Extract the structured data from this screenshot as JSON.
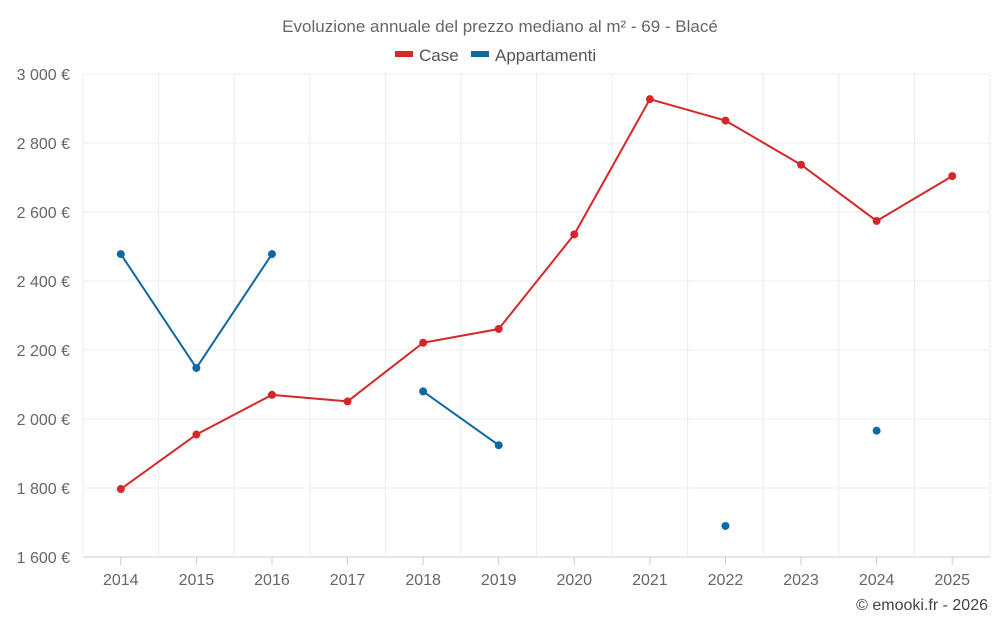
{
  "chart_data": {
    "type": "line",
    "title": "Evoluzione annuale del prezzo mediano al m² - 69 - Blacé",
    "categories": [
      "2014",
      "2015",
      "2016",
      "2017",
      "2018",
      "2019",
      "2020",
      "2021",
      "2022",
      "2023",
      "2024",
      "2025"
    ],
    "ylim": [
      1600,
      3000
    ],
    "yticks": [
      1600,
      1800,
      2000,
      2200,
      2400,
      2600,
      2800,
      3000
    ],
    "ytick_labels": [
      "1 600 €",
      "1 800 €",
      "2 000 €",
      "2 200 €",
      "2 400 €",
      "2 600 €",
      "2 800 €",
      "3 000 €"
    ],
    "legend_position": "top-center",
    "grid": true,
    "series": [
      {
        "name": "Case",
        "color": "#d62728",
        "values": [
          1797,
          1955,
          2070,
          2051,
          2221,
          2261,
          2535,
          2927,
          2865,
          2737,
          2574,
          2704
        ]
      },
      {
        "name": "Appartamenti",
        "color": "#0f67a3",
        "values": [
          2478,
          2148,
          2478,
          null,
          2080,
          1924,
          null,
          null,
          1690,
          null,
          1966,
          null
        ]
      }
    ]
  },
  "credit": "© emooki.fr - 2026"
}
